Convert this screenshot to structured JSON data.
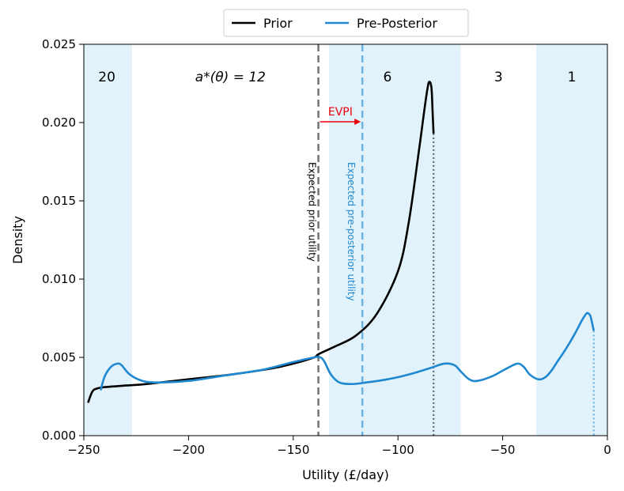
{
  "chart_data": {
    "type": "line",
    "xlabel": "Utility (£/day)",
    "ylabel": "Density",
    "xlim": [
      -250,
      0
    ],
    "ylim": [
      0,
      0.025
    ],
    "xticks": [
      -250,
      -200,
      -150,
      -100,
      -50,
      0
    ],
    "xtick_labels": [
      "−250",
      "−200",
      "−150",
      "−100",
      "−50",
      "0"
    ],
    "yticks": [
      0,
      0.005,
      0.01,
      0.015,
      0.02,
      0.025
    ],
    "ytick_labels": [
      "0.000",
      "0.005",
      "0.010",
      "0.015",
      "0.020",
      "0.025"
    ],
    "legend_position": "top-center",
    "colors": {
      "prior": "#000000",
      "pre_posterior": "#1f88d0",
      "shade": "#e2f2fa",
      "prior_utility_line": "#737373",
      "preposterior_utility_line": "#6ab3e3",
      "evpi": "#e8000b"
    },
    "series": [
      {
        "name": "Prior",
        "x": [
          -248,
          -246,
          -244,
          -240,
          -230,
          -220,
          -200,
          -180,
          -160,
          -150,
          -140,
          -138,
          -130,
          -120,
          -110,
          -100,
          -95,
          -90,
          -88,
          -86,
          -85,
          -84,
          -83.5,
          -83
        ],
        "y": [
          0.0021,
          0.0028,
          0.003,
          0.0031,
          0.0032,
          0.0033,
          0.0036,
          0.0039,
          0.0043,
          0.0046,
          0.005,
          0.0052,
          0.0057,
          0.0064,
          0.0078,
          0.0105,
          0.0135,
          0.0182,
          0.0202,
          0.0221,
          0.0226,
          0.0222,
          0.0208,
          0.0193
        ]
      },
      {
        "name": "Pre-Posterior",
        "x": [
          -242,
          -240,
          -237,
          -234,
          -232,
          -228,
          -222,
          -215,
          -200,
          -180,
          -165,
          -150,
          -140,
          -137,
          -135,
          -132,
          -128,
          -122,
          -115,
          -105,
          -95,
          -85,
          -78,
          -73,
          -70,
          -66,
          -62,
          -55,
          -48,
          -43,
          -40,
          -37,
          -33,
          -30,
          -27,
          -24,
          -20,
          -16,
          -12,
          -10,
          -9,
          -8,
          -7,
          -6.5
        ],
        "y": [
          0.0029,
          0.0038,
          0.0044,
          0.0046,
          0.0045,
          0.0039,
          0.0035,
          0.0034,
          0.0035,
          0.0039,
          0.0042,
          0.0047,
          0.005,
          0.005,
          0.0047,
          0.0039,
          0.0034,
          0.0033,
          0.0034,
          0.0036,
          0.0039,
          0.0043,
          0.0046,
          0.0045,
          0.0041,
          0.0036,
          0.0035,
          0.0038,
          0.0043,
          0.0046,
          0.0044,
          0.0039,
          0.0036,
          0.0037,
          0.0041,
          0.0047,
          0.0055,
          0.0064,
          0.0074,
          0.0078,
          0.0078,
          0.0076,
          0.007,
          0.0067
        ]
      }
    ],
    "shaded_regions": [
      {
        "x0": -250,
        "x1": -227
      },
      {
        "x0": -133,
        "x1": -70
      },
      {
        "x0": -34,
        "x1": 0
      }
    ],
    "region_labels": [
      {
        "x": -239,
        "text": "20"
      },
      {
        "x": -105,
        "text": "6"
      },
      {
        "x": -52,
        "text": "3"
      },
      {
        "x": -17,
        "text": "1"
      }
    ],
    "action_label": {
      "x": -180,
      "text": "a*(θ) = 12"
    },
    "vertical_lines": [
      {
        "name": "Expected prior utility",
        "x": -138,
        "style": "dashed"
      },
      {
        "name": "Expected pre-posterior utility",
        "x": -117,
        "style": "dashed"
      },
      {
        "name": "prior-end",
        "x": -83,
        "y_top": 0.0193,
        "style": "dotted"
      },
      {
        "name": "preposterior-end",
        "x": -6.5,
        "y_top": 0.0067,
        "style": "dotted"
      }
    ],
    "evpi": {
      "label": "EVPI",
      "x_from": -138,
      "x_to": -117,
      "y": 0.02
    }
  }
}
